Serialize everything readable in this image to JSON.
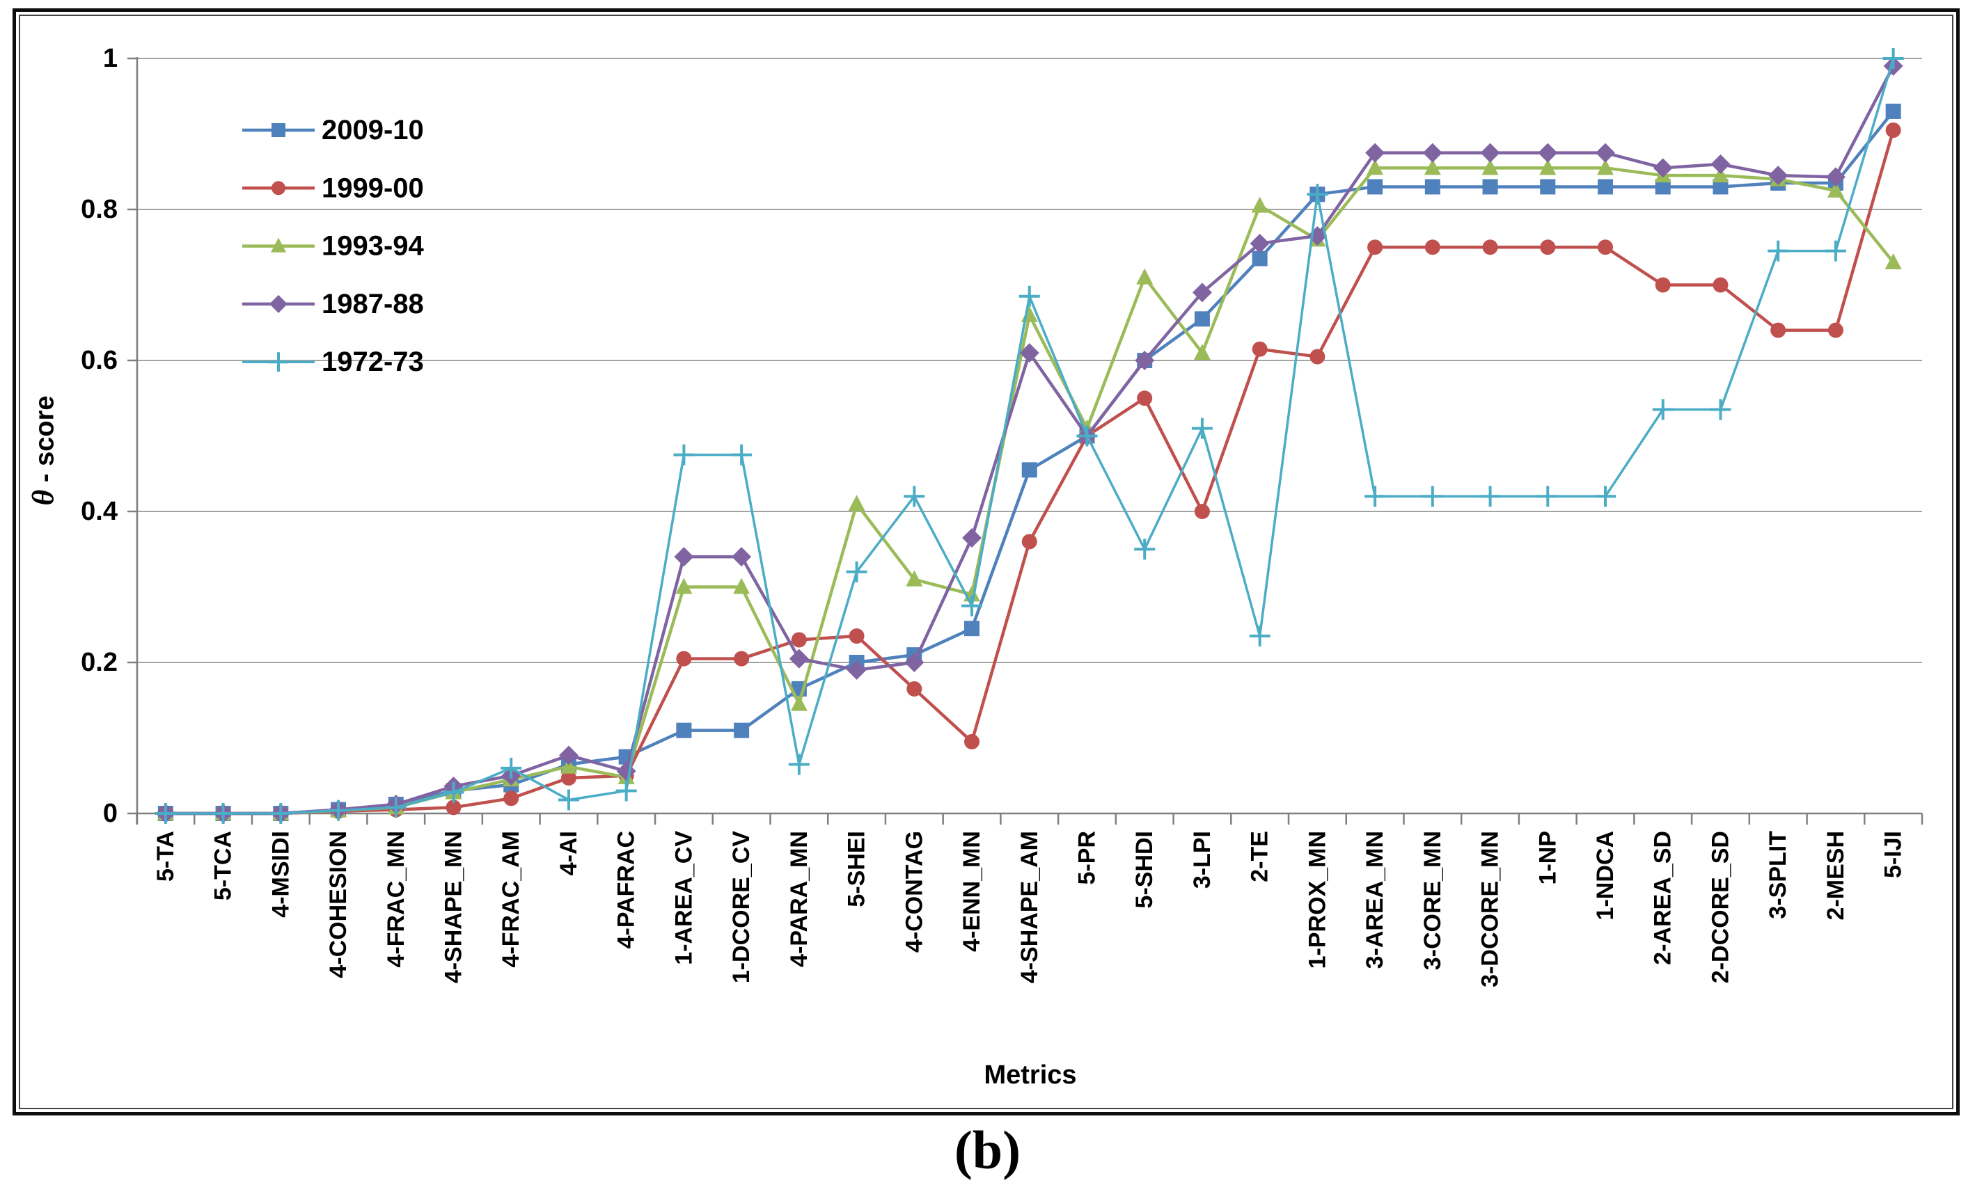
{
  "caption": "(b)",
  "colors": {
    "background": "#ffffff",
    "gridline": "#a3a3a3",
    "axis": "#7f7f7f",
    "series_2009_10": "#4F81BD",
    "series_1999_00": "#C0504D",
    "series_1993_94": "#9BBB59",
    "series_1987_88": "#8064A2",
    "series_1972_73": "#4BACC6"
  },
  "chart_data": {
    "type": "line",
    "title": "",
    "xlabel": "Metrics",
    "ylabel": "θ - score",
    "ylim": [
      0,
      1
    ],
    "grid": true,
    "legend_position": "upper-left-inside",
    "yticks": [
      0,
      0.2,
      0.4,
      0.6,
      0.8,
      1
    ],
    "ytick_labels": [
      "0",
      "0.2",
      "0.4",
      "0.6",
      "0.8",
      "1"
    ],
    "categories": [
      "5-TA",
      "5-TCA",
      "4-MSIDI",
      "4-COHESION",
      "4-FRAC_MN",
      "4-SHAPE_MN",
      "4-FRAC_AM",
      "4-AI",
      "4-PAFRAC",
      "1-AREA_CV",
      "1-DCORE_CV",
      "4-PARA_MN",
      "5-SHEI",
      "4-CONTAG",
      "4-ENN_MN",
      "4-SHAPE_AM",
      "5-PR",
      "5-SHDI",
      "3-LPI",
      "2-TE",
      "1-PROX_MN",
      "3-AREA_MN",
      "3-CORE_MN",
      "3-DCORE_MN",
      "1-NP",
      "1-NDCA",
      "2-AREA_SD",
      "2-DCORE_SD",
      "3-SPLIT",
      "2-MESH",
      "5-IJI"
    ],
    "series": [
      {
        "name": "2009-10",
        "color": "#4F81BD",
        "marker": "square",
        "values": [
          0,
          0,
          0,
          0.005,
          0.012,
          0.03,
          0.038,
          0.065,
          0.075,
          0.11,
          0.11,
          0.165,
          0.2,
          0.21,
          0.245,
          0.455,
          0.5,
          0.6,
          0.655,
          0.735,
          0.82,
          0.83,
          0.83,
          0.83,
          0.83,
          0.83,
          0.83,
          0.83,
          0.835,
          0.835,
          0.93
        ]
      },
      {
        "name": "1999-00",
        "color": "#C0504D",
        "marker": "circle",
        "values": [
          0,
          0,
          0,
          0.003,
          0.005,
          0.008,
          0.02,
          0.047,
          0.05,
          0.205,
          0.205,
          0.23,
          0.235,
          0.165,
          0.095,
          0.36,
          0.5,
          0.55,
          0.4,
          0.615,
          0.605,
          0.75,
          0.75,
          0.75,
          0.75,
          0.75,
          0.7,
          0.7,
          0.64,
          0.64,
          0.905
        ]
      },
      {
        "name": "1993-94",
        "color": "#9BBB59",
        "marker": "triangle",
        "values": [
          0,
          0,
          0,
          0.004,
          0.008,
          0.028,
          0.045,
          0.062,
          0.048,
          0.3,
          0.3,
          0.145,
          0.41,
          0.31,
          0.29,
          0.66,
          0.51,
          0.71,
          0.61,
          0.805,
          0.76,
          0.855,
          0.855,
          0.855,
          0.855,
          0.855,
          0.845,
          0.845,
          0.84,
          0.825,
          0.73
        ]
      },
      {
        "name": "1987-88",
        "color": "#8064A2",
        "marker": "diamond",
        "values": [
          0,
          0,
          0,
          0.005,
          0.012,
          0.036,
          0.05,
          0.077,
          0.056,
          0.34,
          0.34,
          0.205,
          0.19,
          0.2,
          0.365,
          0.61,
          0.5,
          0.6,
          0.69,
          0.755,
          0.765,
          0.875,
          0.875,
          0.875,
          0.875,
          0.875,
          0.855,
          0.86,
          0.845,
          0.843,
          0.99
        ]
      },
      {
        "name": "1972-73",
        "color": "#4BACC6",
        "marker": "plus",
        "values": [
          0,
          0,
          0,
          0.004,
          0.008,
          0.028,
          0.06,
          0.018,
          0.03,
          0.475,
          0.475,
          0.065,
          0.32,
          0.42,
          0.275,
          0.685,
          0.5,
          0.35,
          0.51,
          0.235,
          0.82,
          0.42,
          0.42,
          0.42,
          0.42,
          0.42,
          0.535,
          0.535,
          0.745,
          0.745,
          1.0
        ]
      }
    ]
  }
}
